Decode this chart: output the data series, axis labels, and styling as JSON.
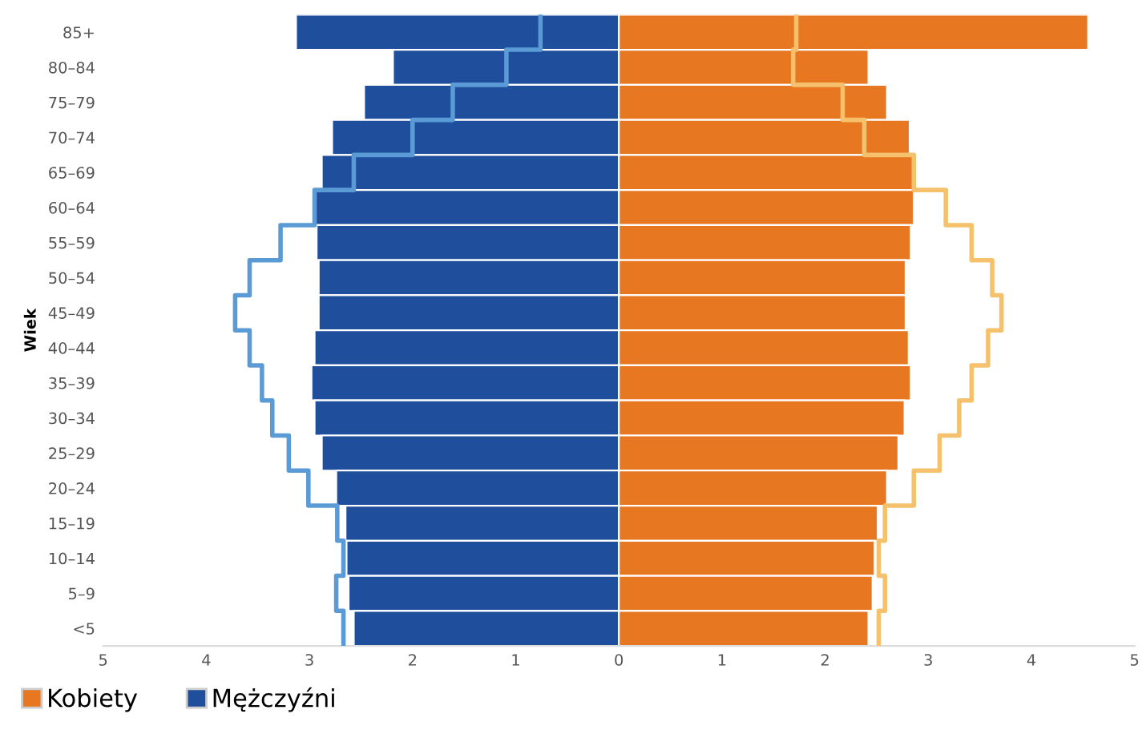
{
  "chart_data": {
    "type": "bar",
    "orientation": "horizontal",
    "ylabel": "Wiek",
    "categories": [
      "85+",
      "80–84",
      "75–79",
      "70–74",
      "65–69",
      "60–64",
      "55–59",
      "50–54",
      "45–49",
      "40–44",
      "35–39",
      "30–34",
      "25–29",
      "20–24",
      "15–19",
      "10–14",
      "5–9",
      "<5"
    ],
    "series": [
      {
        "name": "Mężczyźni",
        "color": "#1f4e9c",
        "values": [
          -3.13,
          -2.19,
          -2.47,
          -2.78,
          -2.88,
          -2.95,
          -2.93,
          -2.91,
          -2.91,
          -2.95,
          -2.98,
          -2.95,
          -2.88,
          -2.74,
          -2.65,
          -2.64,
          -2.62,
          -2.57
        ]
      },
      {
        "name": "Kobiety",
        "color": "#e87722",
        "values": [
          4.55,
          2.42,
          2.6,
          2.82,
          2.86,
          2.86,
          2.83,
          2.78,
          2.78,
          2.81,
          2.83,
          2.77,
          2.71,
          2.6,
          2.51,
          2.48,
          2.46,
          2.42
        ]
      },
      {
        "type": "step",
        "color": "#5b9bd5",
        "values": [
          -0.76,
          -1.09,
          -1.61,
          -2.0,
          -2.57,
          -2.95,
          -3.28,
          -3.58,
          -3.72,
          -3.58,
          -3.46,
          -3.36,
          -3.2,
          -3.01,
          -2.73,
          -2.67,
          -2.74,
          -2.67
        ]
      },
      {
        "type": "step",
        "color": "#f5c16c",
        "values": [
          1.72,
          1.69,
          2.17,
          2.38,
          2.86,
          3.17,
          3.42,
          3.62,
          3.71,
          3.58,
          3.42,
          3.3,
          3.11,
          2.86,
          2.58,
          2.52,
          2.58,
          2.52
        ]
      }
    ],
    "stacked": true,
    "xlim": [
      -5,
      5
    ],
    "xticks": [
      {
        "value": -5,
        "label": "5"
      },
      {
        "value": -4,
        "label": "4"
      },
      {
        "value": -3,
        "label": "3"
      },
      {
        "value": -2,
        "label": "2"
      },
      {
        "value": -1,
        "label": "1"
      },
      0,
      1,
      2,
      3,
      4,
      5
    ],
    "legend": "bottom left"
  }
}
